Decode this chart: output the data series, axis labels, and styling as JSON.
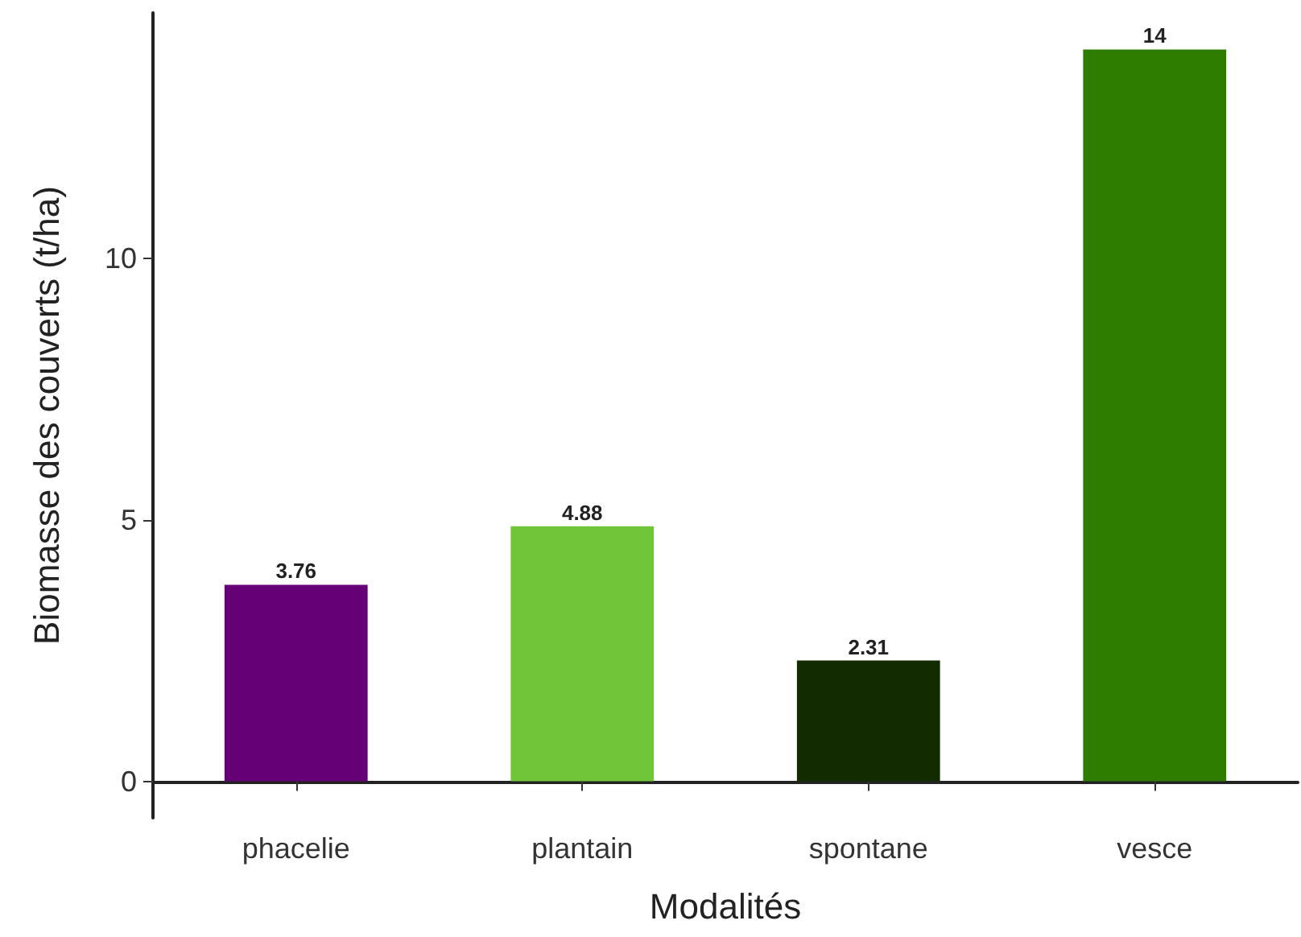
{
  "chart_data": {
    "type": "bar",
    "xlabel": "Modalités",
    "ylabel": "Biomasse des couverts (t/ha)",
    "categories": [
      "phacelie",
      "plantain",
      "spontane",
      "vesce"
    ],
    "values": [
      3.76,
      4.88,
      2.31,
      14
    ],
    "colors": [
      "#660077",
      "#70c638",
      "#122b00",
      "#2e7d00"
    ],
    "ylim": [
      -0.7,
      14.7
    ],
    "yticks": [
      0,
      5,
      10
    ],
    "data_labels": true,
    "grid": false
  }
}
